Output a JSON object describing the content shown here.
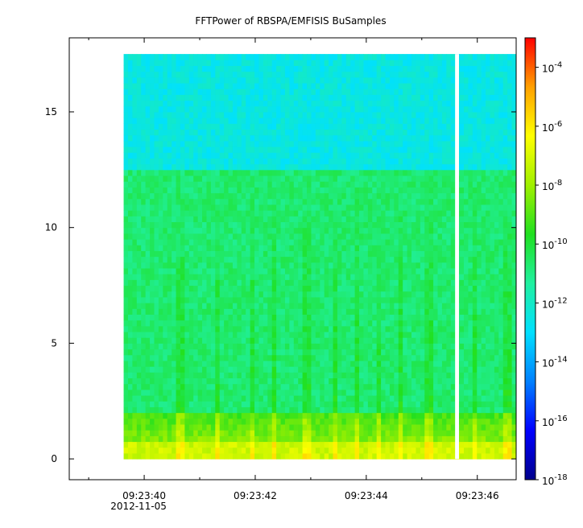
{
  "chart_data": {
    "type": "heatmap",
    "title": "FFTPower of RBSPA/EMFISIS  BuSamples",
    "xlabel": "",
    "ylabel": "",
    "x_ticks": [
      {
        "value": 40,
        "label": "09:23:40"
      },
      {
        "value": 42,
        "label": "09:23:42"
      },
      {
        "value": 44,
        "label": "09:23:44"
      },
      {
        "value": 46,
        "label": "09:23:46"
      }
    ],
    "x_sublabel": "2012-11-05",
    "x_sublabel_at": 40,
    "x_minor_ticks": [
      39,
      41,
      43,
      45
    ],
    "xlim": [
      38.65,
      46.7
    ],
    "ylim": [
      -0.9,
      18.2
    ],
    "y_ticks": [
      0,
      5,
      10,
      15
    ],
    "data_extent": {
      "x": [
        39.63,
        46.7
      ],
      "y": [
        0,
        17.5
      ]
    },
    "gap": {
      "x": [
        45.6,
        45.67
      ]
    },
    "colorbar": {
      "scale": "log",
      "range": [
        1e-18,
        0.001
      ],
      "ticks": [
        {
          "value": -4,
          "base": "10",
          "exp": "-4"
        },
        {
          "value": -6,
          "base": "10",
          "exp": "-6"
        },
        {
          "value": -8,
          "base": "10",
          "exp": "-8"
        },
        {
          "value": -10,
          "base": "10",
          "exp": "-10"
        },
        {
          "value": -12,
          "base": "10",
          "exp": "-12"
        },
        {
          "value": -14,
          "base": "10",
          "exp": "-14"
        },
        {
          "value": -16,
          "base": "10",
          "exp": "-16"
        },
        {
          "value": -18,
          "base": "10",
          "exp": "-18"
        }
      ],
      "colors": [
        "#00008c",
        "#0000ff",
        "#0080ff",
        "#00e0ff",
        "#20f0a0",
        "#20e020",
        "#a0f000",
        "#ffff00",
        "#ffa000",
        "#ff0000"
      ]
    },
    "levels": {
      "background_high": -12.5,
      "background_mid": -10.7,
      "low_band": -7.8,
      "band_edge_y": 12.3
    }
  }
}
